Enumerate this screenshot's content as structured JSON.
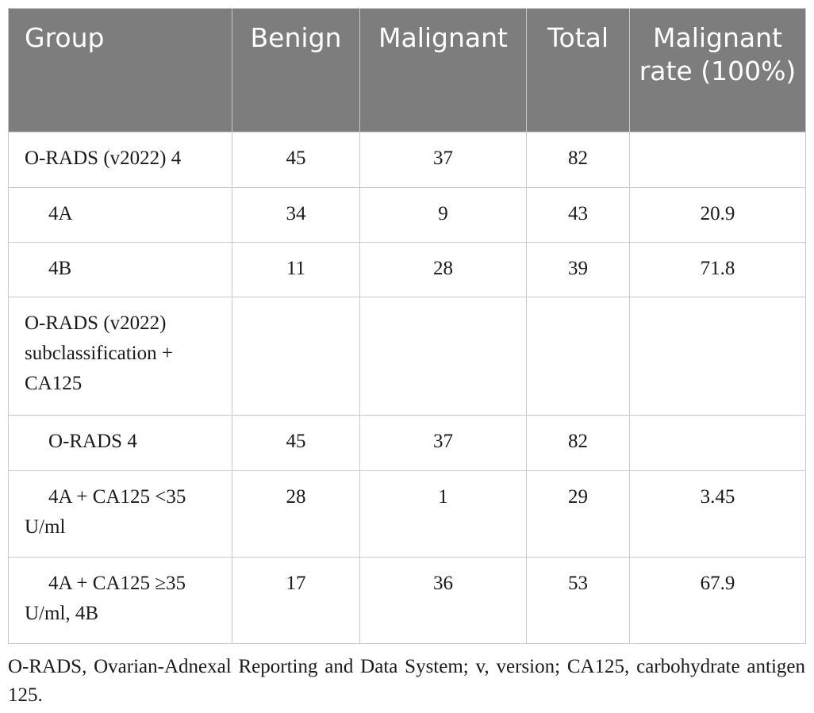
{
  "table": {
    "headers": {
      "group": "Group",
      "benign": "Benign",
      "malignant": "Malignant",
      "total": "Total",
      "malignant_rate": "Malignant rate (100%)"
    },
    "rows": [
      {
        "group": "O-RADS (v2022) 4",
        "benign": "45",
        "malignant": "37",
        "total": "82",
        "rate": ""
      },
      {
        "group": "4A",
        "benign": "34",
        "malignant": "9",
        "total": "43",
        "rate": "20.9"
      },
      {
        "group": "4B",
        "benign": "11",
        "malignant": "28",
        "total": "39",
        "rate": "71.8"
      },
      {
        "group": "O-RADS (v2022) subclassification + CA125",
        "benign": "",
        "malignant": "",
        "total": "",
        "rate": ""
      },
      {
        "group": "O-RADS 4",
        "benign": "45",
        "malignant": "37",
        "total": "82",
        "rate": ""
      },
      {
        "group": "4A + CA125 <35 U/ml",
        "benign": "28",
        "malignant": "1",
        "total": "29",
        "rate": "3.45"
      },
      {
        "group": "4A + CA125 ≥35 U/ml, 4B",
        "benign": "17",
        "malignant": "36",
        "total": "53",
        "rate": "67.9"
      }
    ]
  },
  "footnote": "O-RADS, Ovarian-Adnexal Reporting and Data System; v, version; CA125, carbohydrate antigen 125."
}
